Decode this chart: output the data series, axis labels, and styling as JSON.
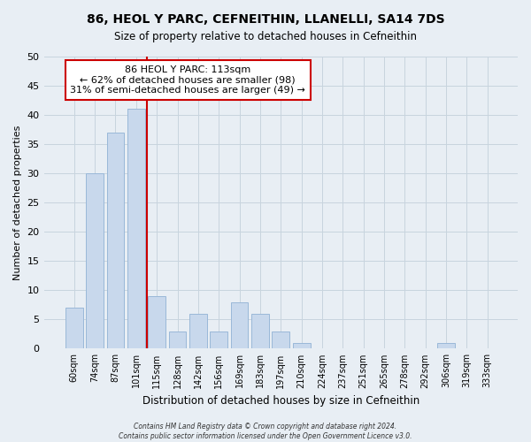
{
  "title": "86, HEOL Y PARC, CEFNEITHIN, LLANELLI, SA14 7DS",
  "subtitle": "Size of property relative to detached houses in Cefneithin",
  "xlabel": "Distribution of detached houses by size in Cefneithin",
  "ylabel": "Number of detached properties",
  "bar_labels": [
    "60sqm",
    "74sqm",
    "87sqm",
    "101sqm",
    "115sqm",
    "128sqm",
    "142sqm",
    "156sqm",
    "169sqm",
    "183sqm",
    "197sqm",
    "210sqm",
    "224sqm",
    "237sqm",
    "251sqm",
    "265sqm",
    "278sqm",
    "292sqm",
    "306sqm",
    "319sqm",
    "333sqm"
  ],
  "bar_values": [
    7,
    30,
    37,
    41,
    9,
    3,
    6,
    3,
    8,
    6,
    3,
    1,
    0,
    0,
    0,
    0,
    0,
    0,
    1,
    0,
    0
  ],
  "bar_color": "#c8d8ec",
  "bar_edge_color": "#9ab8d8",
  "vline_x_index": 3,
  "vline_color": "#cc0000",
  "annotation_title": "86 HEOL Y PARC: 113sqm",
  "annotation_line1": "← 62% of detached houses are smaller (98)",
  "annotation_line2": "31% of semi-detached houses are larger (49) →",
  "annotation_box_color": "#cc0000",
  "ylim": [
    0,
    50
  ],
  "yticks": [
    0,
    5,
    10,
    15,
    20,
    25,
    30,
    35,
    40,
    45,
    50
  ],
  "footer1": "Contains HM Land Registry data © Crown copyright and database right 2024.",
  "footer2": "Contains public sector information licensed under the Open Government Licence v3.0.",
  "bg_color": "#e8eef4",
  "plot_bg_color": "#e8eef4",
  "grid_color": "#c8d4de"
}
